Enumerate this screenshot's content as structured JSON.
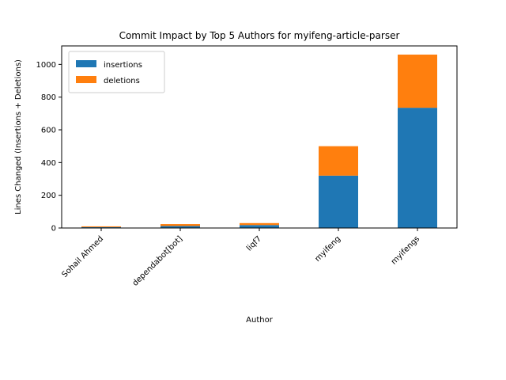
{
  "chart_data": {
    "type": "bar",
    "stacked": true,
    "title": "Commit Impact by Top 5 Authors for myifeng-article-parser",
    "xlabel": "Author",
    "ylabel": "Lines Changed (Insertions + Deletions)",
    "categories": [
      "Sohail Ahmed",
      "dependabot[bot]",
      "liqf7",
      "myifeng",
      "myifengs"
    ],
    "series": [
      {
        "name": "insertions",
        "color": "#1f77b4",
        "values": [
          5,
          12,
          18,
          320,
          735
        ]
      },
      {
        "name": "deletions",
        "color": "#ff7f0e",
        "values": [
          5,
          12,
          12,
          180,
          325
        ]
      }
    ],
    "ylim": [
      0,
      1113
    ],
    "yticks": [
      0,
      200,
      400,
      600,
      800,
      1000
    ],
    "legend": {
      "position": "top-left"
    },
    "grid": false
  }
}
